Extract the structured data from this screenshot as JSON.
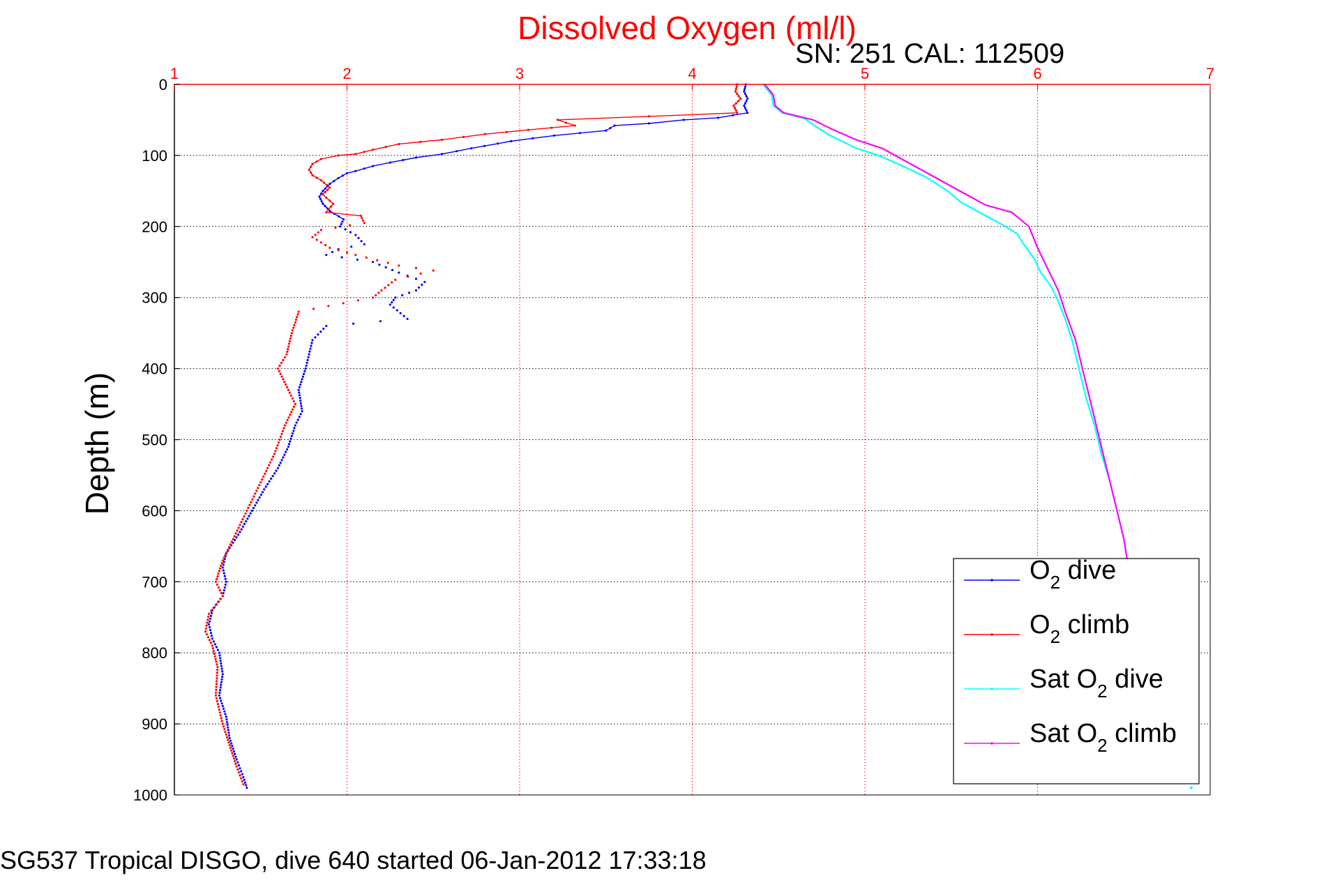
{
  "chart_data": {
    "type": "line",
    "title": "Dissolved Oxygen (ml/l)",
    "subtitle": "SN: 251  CAL: 112509",
    "ylabel": "Depth (m)",
    "xlabel": "",
    "xlim": [
      1,
      7
    ],
    "ylim": [
      0,
      1000
    ],
    "y_reversed": true,
    "x_axis_position": "top",
    "x_ticks": [
      "1",
      "2",
      "3",
      "4",
      "5",
      "6",
      "7"
    ],
    "y_ticks": [
      "0",
      "100",
      "200",
      "300",
      "400",
      "500",
      "600",
      "700",
      "800",
      "900",
      "1000"
    ],
    "grid": true,
    "legend_position": "bottom-right",
    "legend": [
      {
        "base": "O",
        "sub": "2",
        "rest": " dive"
      },
      {
        "base": "O",
        "sub": "2",
        "rest": " climb"
      },
      {
        "base": "Sat O",
        "sub": "2",
        "rest": " dive"
      },
      {
        "base": "Sat O",
        "sub": "2",
        "rest": " climb"
      }
    ],
    "series": [
      {
        "color": "#0000ff",
        "style": "dotted-line",
        "points": [
          [
            4.31,
            0
          ],
          [
            4.3,
            10
          ],
          [
            4.32,
            20
          ],
          [
            4.3,
            30
          ],
          [
            4.32,
            40
          ],
          [
            4.15,
            47
          ],
          [
            3.95,
            50
          ],
          [
            3.75,
            55
          ],
          [
            3.55,
            58
          ],
          [
            3.5,
            65
          ],
          [
            3.2,
            72
          ],
          [
            2.95,
            80
          ],
          [
            2.72,
            90
          ],
          [
            2.55,
            98
          ],
          [
            2.4,
            103
          ],
          [
            2.25,
            110
          ],
          [
            2.15,
            115
          ],
          [
            2.05,
            122
          ],
          [
            2.0,
            125
          ],
          [
            1.95,
            132
          ],
          [
            1.9,
            140
          ],
          [
            1.86,
            150
          ],
          [
            1.84,
            158
          ],
          [
            1.86,
            168
          ],
          [
            1.9,
            178
          ],
          [
            1.98,
            190
          ],
          [
            1.96,
            200
          ],
          [
            2.05,
            212
          ],
          [
            2.1,
            225
          ],
          [
            1.95,
            232
          ],
          [
            1.88,
            240
          ],
          [
            2.15,
            250
          ],
          [
            2.3,
            265
          ],
          [
            2.45,
            278
          ],
          [
            2.4,
            290
          ],
          [
            2.28,
            300
          ],
          [
            2.25,
            310
          ],
          [
            2.35,
            330
          ],
          [
            1.88,
            340
          ],
          [
            1.8,
            360
          ],
          [
            1.78,
            380
          ],
          [
            1.76,
            400
          ],
          [
            1.72,
            430
          ],
          [
            1.74,
            460
          ],
          [
            1.7,
            480
          ],
          [
            1.66,
            510
          ],
          [
            1.6,
            540
          ],
          [
            1.52,
            570
          ],
          [
            1.45,
            600
          ],
          [
            1.38,
            630
          ],
          [
            1.3,
            660
          ],
          [
            1.28,
            680
          ],
          [
            1.3,
            700
          ],
          [
            1.28,
            720
          ],
          [
            1.22,
            740
          ],
          [
            1.2,
            760
          ],
          [
            1.22,
            780
          ],
          [
            1.26,
            800
          ],
          [
            1.28,
            830
          ],
          [
            1.26,
            860
          ],
          [
            1.3,
            890
          ],
          [
            1.32,
            920
          ],
          [
            1.36,
            950
          ],
          [
            1.4,
            975
          ],
          [
            1.42,
            990
          ]
        ]
      },
      {
        "color": "#ff0000",
        "style": "dotted-line",
        "points": [
          [
            4.26,
            0
          ],
          [
            4.25,
            10
          ],
          [
            4.28,
            20
          ],
          [
            4.24,
            30
          ],
          [
            4.26,
            40
          ],
          [
            3.75,
            45
          ],
          [
            3.22,
            50
          ],
          [
            3.32,
            58
          ],
          [
            3.05,
            64
          ],
          [
            2.8,
            70
          ],
          [
            2.55,
            78
          ],
          [
            2.3,
            84
          ],
          [
            2.15,
            92
          ],
          [
            2.05,
            98
          ],
          [
            1.95,
            100
          ],
          [
            1.85,
            105
          ],
          [
            1.8,
            112
          ],
          [
            1.78,
            120
          ],
          [
            1.8,
            128
          ],
          [
            1.85,
            135
          ],
          [
            1.9,
            145
          ],
          [
            1.86,
            155
          ],
          [
            1.92,
            168
          ],
          [
            1.88,
            180
          ],
          [
            2.08,
            185
          ],
          [
            2.1,
            195
          ],
          [
            1.85,
            205
          ],
          [
            1.8,
            215
          ],
          [
            1.9,
            230
          ],
          [
            2.05,
            240
          ],
          [
            2.3,
            255
          ],
          [
            2.5,
            262
          ],
          [
            2.28,
            275
          ],
          [
            2.2,
            290
          ],
          [
            2.15,
            300
          ],
          [
            1.72,
            320
          ],
          [
            1.68,
            350
          ],
          [
            1.65,
            380
          ],
          [
            1.6,
            400
          ],
          [
            1.66,
            430
          ],
          [
            1.7,
            450
          ],
          [
            1.64,
            480
          ],
          [
            1.58,
            520
          ],
          [
            1.5,
            560
          ],
          [
            1.42,
            600
          ],
          [
            1.34,
            640
          ],
          [
            1.28,
            670
          ],
          [
            1.24,
            700
          ],
          [
            1.28,
            720
          ],
          [
            1.2,
            745
          ],
          [
            1.18,
            770
          ],
          [
            1.22,
            790
          ],
          [
            1.25,
            820
          ],
          [
            1.24,
            860
          ],
          [
            1.28,
            900
          ],
          [
            1.32,
            930
          ],
          [
            1.36,
            960
          ],
          [
            1.4,
            985
          ]
        ]
      },
      {
        "color": "#00ffff",
        "style": "line",
        "points": [
          [
            4.41,
            0
          ],
          [
            4.46,
            15
          ],
          [
            4.47,
            30
          ],
          [
            4.52,
            40
          ],
          [
            4.65,
            48
          ],
          [
            4.72,
            60
          ],
          [
            4.8,
            72
          ],
          [
            4.95,
            90
          ],
          [
            5.08,
            100
          ],
          [
            5.22,
            115
          ],
          [
            5.35,
            130
          ],
          [
            5.48,
            150
          ],
          [
            5.55,
            165
          ],
          [
            5.7,
            185
          ],
          [
            5.8,
            198
          ],
          [
            5.88,
            210
          ],
          [
            5.92,
            225
          ],
          [
            5.98,
            245
          ],
          [
            6.02,
            265
          ],
          [
            6.08,
            285
          ],
          [
            6.12,
            305
          ],
          [
            6.16,
            330
          ],
          [
            6.2,
            360
          ],
          [
            6.24,
            400
          ],
          [
            6.28,
            440
          ],
          [
            6.33,
            480
          ],
          [
            6.37,
            520
          ],
          [
            6.42,
            560
          ],
          [
            6.46,
            600
          ],
          [
            6.5,
            640
          ],
          [
            6.52,
            670
          ]
        ]
      },
      {
        "color": "#ff00ff",
        "style": "line",
        "points": [
          [
            4.42,
            0
          ],
          [
            4.47,
            15
          ],
          [
            4.48,
            30
          ],
          [
            4.53,
            40
          ],
          [
            4.7,
            50
          ],
          [
            4.8,
            62
          ],
          [
            4.95,
            78
          ],
          [
            5.1,
            90
          ],
          [
            5.25,
            110
          ],
          [
            5.4,
            130
          ],
          [
            5.55,
            150
          ],
          [
            5.7,
            170
          ],
          [
            5.85,
            180
          ],
          [
            5.95,
            200
          ],
          [
            6.0,
            230
          ],
          [
            6.06,
            260
          ],
          [
            6.12,
            290
          ],
          [
            6.16,
            320
          ],
          [
            6.22,
            360
          ],
          [
            6.26,
            400
          ],
          [
            6.3,
            440
          ],
          [
            6.34,
            480
          ],
          [
            6.38,
            520
          ],
          [
            6.42,
            560
          ],
          [
            6.46,
            600
          ],
          [
            6.5,
            640
          ],
          [
            6.52,
            670
          ]
        ]
      }
    ],
    "extra_points": [
      [
        6.89,
        990,
        "#00ffff"
      ]
    ]
  },
  "footer": "SG537 Tropical DISGO, dive 640 started 06-Jan-2012 17:33:18"
}
